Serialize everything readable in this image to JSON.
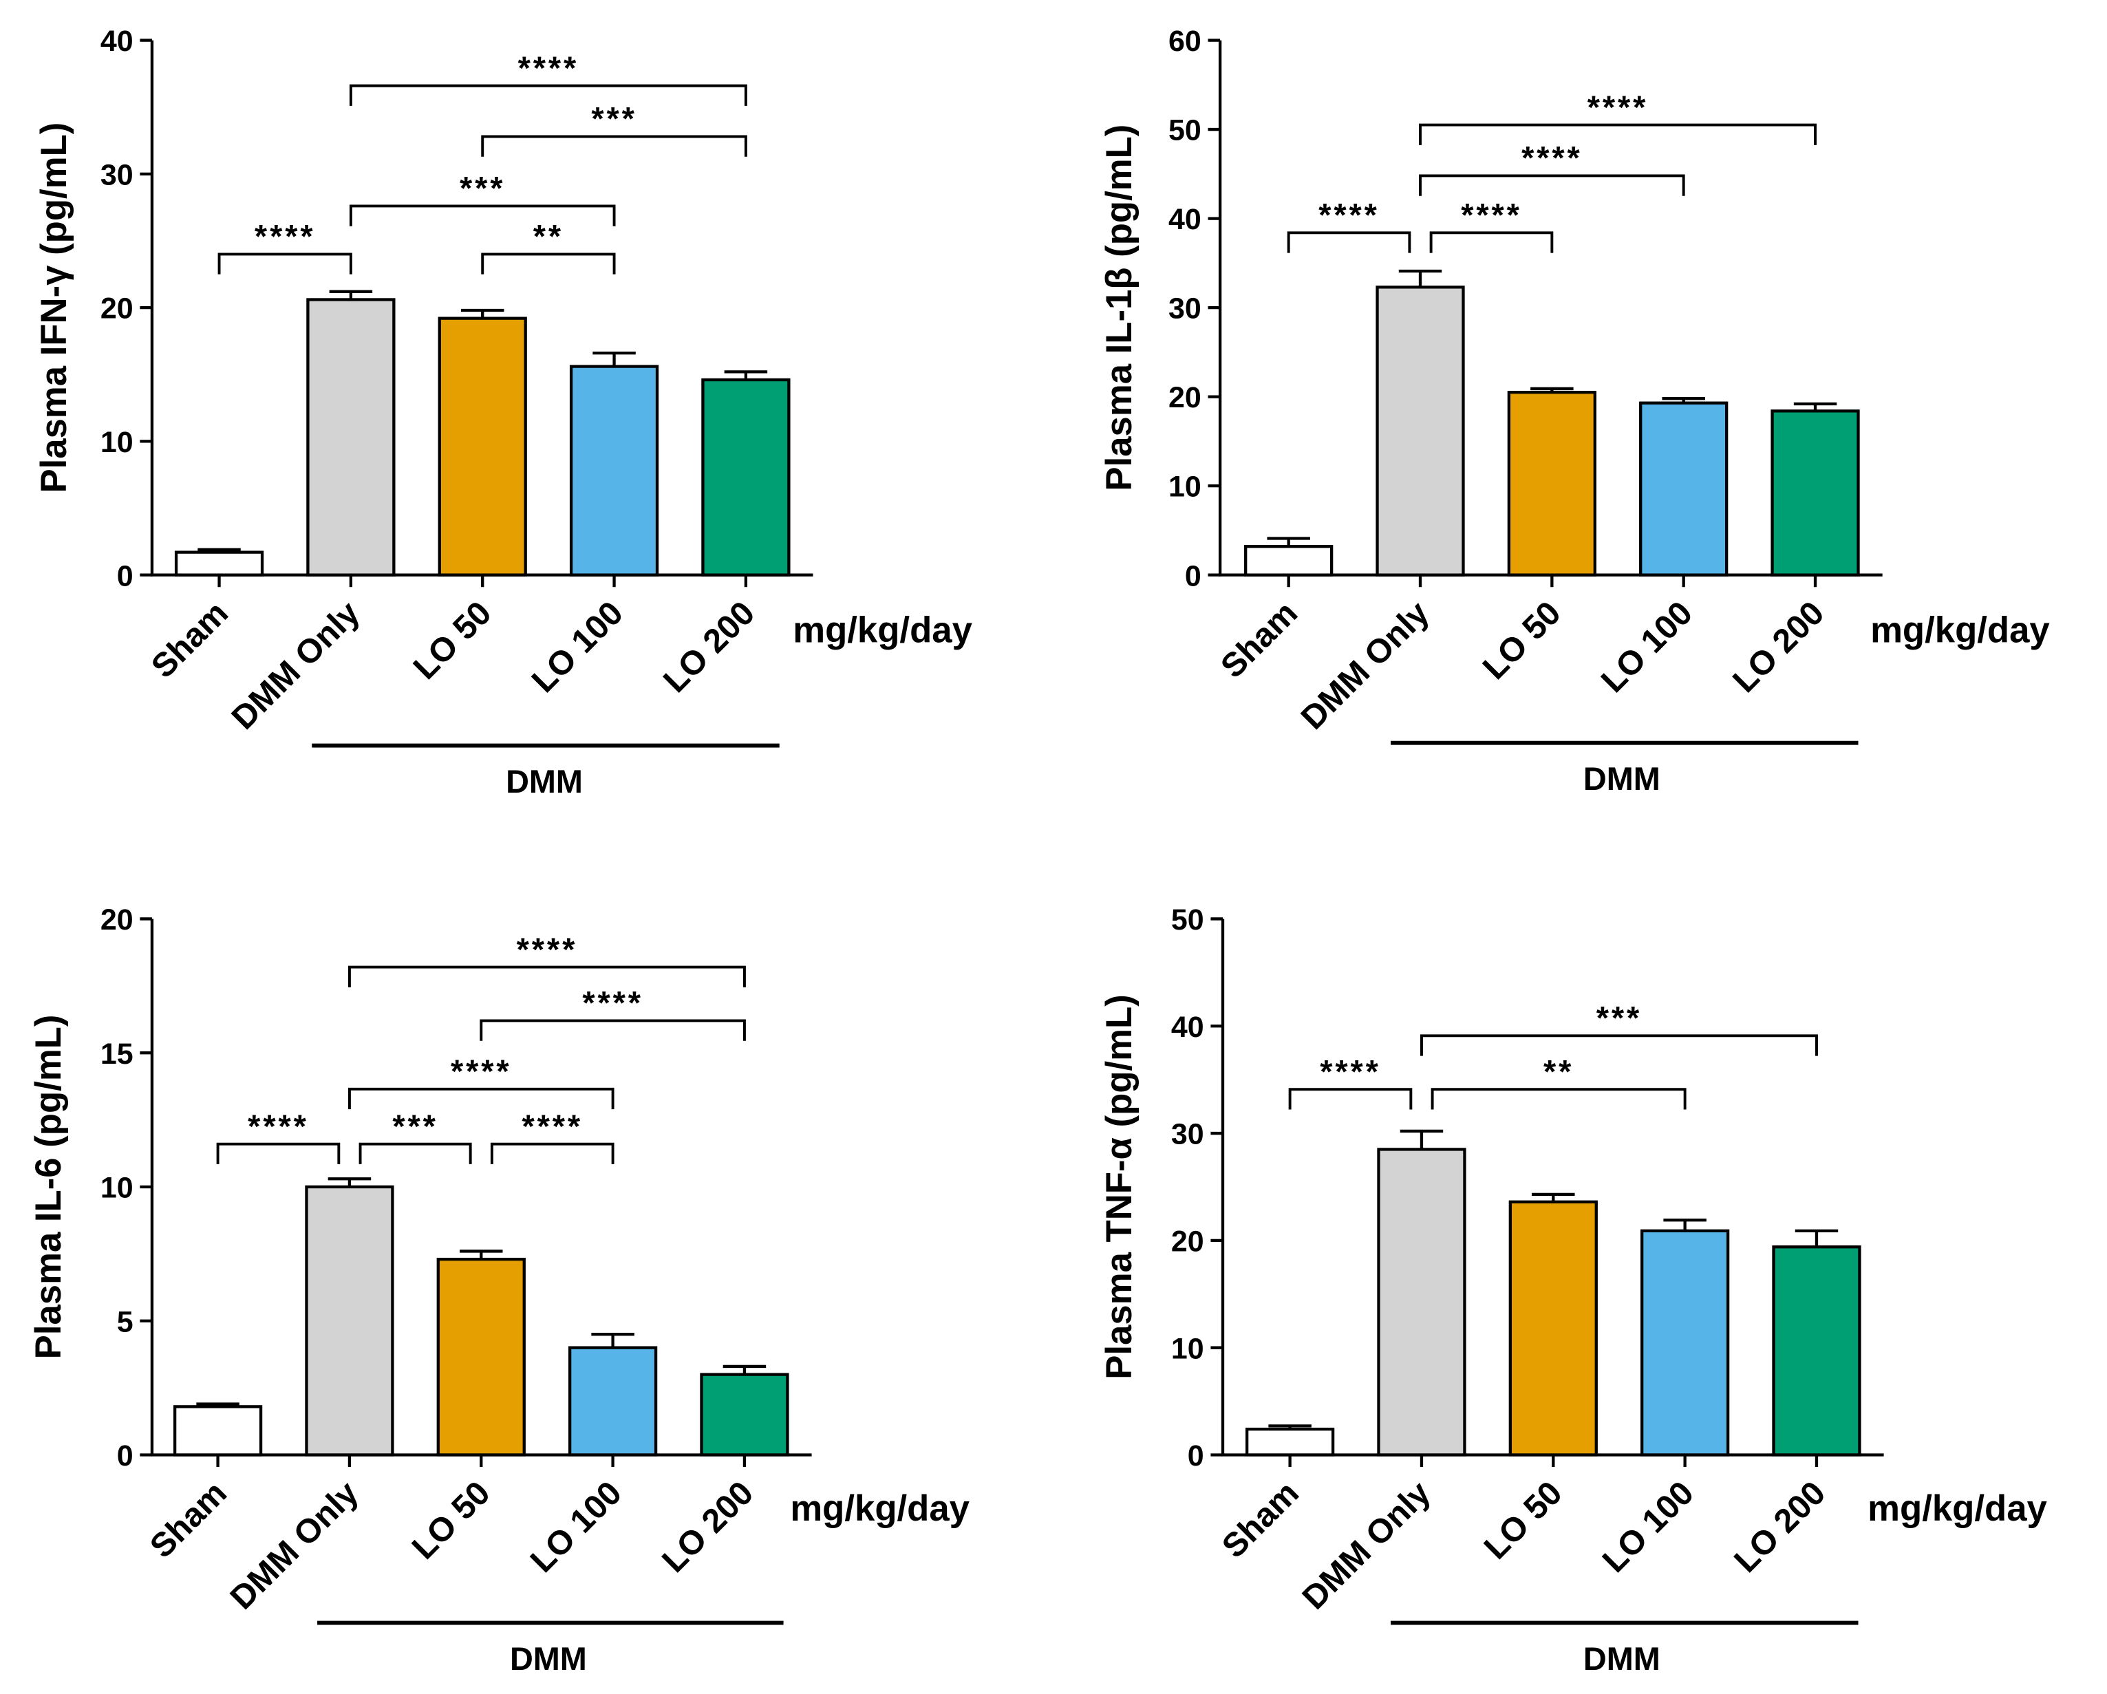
{
  "chart_data": [
    {
      "type": "bar",
      "ylabel": "Plasma IFN-γ (pg/mL)",
      "ylim": [
        0,
        40
      ],
      "yticks": [
        0,
        10,
        20,
        30,
        40
      ],
      "categories": [
        "Sham",
        "DMM Only",
        "LO 50",
        "LO 100",
        "LO 200"
      ],
      "values": [
        1.7,
        20.6,
        19.2,
        15.6,
        14.6
      ],
      "errors": [
        0.2,
        0.6,
        0.6,
        1.0,
        0.6
      ],
      "unit_label": "mg/kg/day",
      "group_label": "DMM",
      "significance": [
        {
          "from": 0,
          "to": 1,
          "level": 24.0,
          "label": "****"
        },
        {
          "from": 2,
          "to": 3,
          "level": 24.0,
          "label": "**"
        },
        {
          "from": 1,
          "to": 3,
          "level": 27.6,
          "label": "***"
        },
        {
          "from": 2,
          "to": 4,
          "level": 32.8,
          "label": "***"
        },
        {
          "from": 1,
          "to": 4,
          "level": 36.6,
          "label": "****"
        }
      ]
    },
    {
      "type": "bar",
      "ylabel": "Plasma IL-1β (pg/mL)",
      "ylim": [
        0,
        60
      ],
      "yticks": [
        0,
        10,
        20,
        30,
        40,
        50,
        60
      ],
      "categories": [
        "Sham",
        "DMM Only",
        "LO 50",
        "LO 100",
        "LO 200"
      ],
      "values": [
        3.2,
        32.3,
        20.5,
        19.3,
        18.4
      ],
      "errors": [
        0.9,
        1.8,
        0.4,
        0.5,
        0.8
      ],
      "unit_label": "mg/kg/day",
      "group_label": "DMM",
      "significance": [
        {
          "from": 0,
          "to": 1,
          "level": 38.4,
          "label": "****"
        },
        {
          "from": 1,
          "to": 2,
          "level": 38.4,
          "label": "****"
        },
        {
          "from": 1,
          "to": 3,
          "level": 44.8,
          "label": "****"
        },
        {
          "from": 1,
          "to": 4,
          "level": 50.5,
          "label": "****"
        }
      ]
    },
    {
      "type": "bar",
      "ylabel": "Plasma IL-6 (pg/mL)",
      "ylim": [
        0,
        20
      ],
      "yticks": [
        0,
        5,
        10,
        15,
        20
      ],
      "categories": [
        "Sham",
        "DMM Only",
        "LO 50",
        "LO 100",
        "LO 200"
      ],
      "values": [
        1.8,
        10.0,
        7.3,
        4.0,
        3.0
      ],
      "errors": [
        0.1,
        0.3,
        0.3,
        0.5,
        0.3
      ],
      "unit_label": "mg/kg/day",
      "group_label": "DMM",
      "significance": [
        {
          "from": 0,
          "to": 1,
          "level": 11.6,
          "label": "****"
        },
        {
          "from": 1,
          "to": 2,
          "level": 11.6,
          "label": "***"
        },
        {
          "from": 2,
          "to": 3,
          "level": 11.6,
          "label": "****"
        },
        {
          "from": 1,
          "to": 3,
          "level": 13.65,
          "label": "****"
        },
        {
          "from": 2,
          "to": 4,
          "level": 16.2,
          "label": "****"
        },
        {
          "from": 1,
          "to": 4,
          "level": 18.2,
          "label": "****"
        }
      ]
    },
    {
      "type": "bar",
      "ylabel": "Plasma TNF-α (pg/mL)",
      "ylim": [
        0,
        50
      ],
      "yticks": [
        0,
        10,
        20,
        30,
        40,
        50
      ],
      "categories": [
        "Sham",
        "DMM Only",
        "LO 50",
        "LO 100",
        "LO 200"
      ],
      "values": [
        2.4,
        28.5,
        23.6,
        20.9,
        19.4
      ],
      "errors": [
        0.3,
        1.7,
        0.7,
        1.0,
        1.5
      ],
      "unit_label": "mg/kg/day",
      "group_label": "DMM",
      "significance": [
        {
          "from": 0,
          "to": 1,
          "level": 34.1,
          "label": "****"
        },
        {
          "from": 1,
          "to": 3,
          "level": 34.1,
          "label": "**"
        },
        {
          "from": 1,
          "to": 4,
          "level": 39.1,
          "label": "***"
        }
      ]
    }
  ],
  "colors": [
    "#ffffff",
    "#d3d3d3",
    "#e69f00",
    "#56b4e9",
    "#009e73"
  ]
}
